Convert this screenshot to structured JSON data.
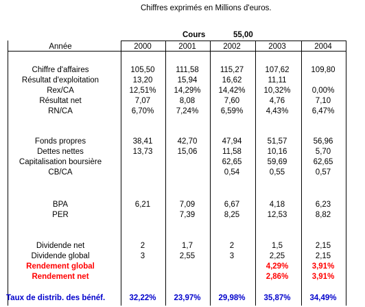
{
  "note": "Chiffres exprimés en Millions d'euros.",
  "cours_label": "Cours",
  "cours_value": "55,00",
  "header": {
    "label": "Année",
    "years": [
      "2000",
      "2001",
      "2002",
      "2003",
      "2004"
    ]
  },
  "sections": [
    {
      "rows": [
        {
          "label": "Chiffre d'affaires",
          "values": [
            "105,50",
            "111,58",
            "115,27",
            "107,62",
            "109,80"
          ]
        },
        {
          "label": "Résultat d'exploitation",
          "values": [
            "13,20",
            "15,94",
            "16,62",
            "11,11",
            ""
          ]
        },
        {
          "label": "Rex/CA",
          "values": [
            "12,51%",
            "14,29%",
            "14,42%",
            "10,32%",
            "0,00%"
          ]
        },
        {
          "label": "Résultat net",
          "values": [
            "7,07",
            "8,08",
            "7,60",
            "4,76",
            "7,10"
          ]
        },
        {
          "label": "RN/CA",
          "values": [
            "6,70%",
            "7,24%",
            "6,59%",
            "4,43%",
            "6,47%"
          ]
        }
      ]
    },
    {
      "rows": [
        {
          "label": "Fonds propres",
          "values": [
            "38,41",
            "42,70",
            "47,94",
            "51,57",
            "56,96"
          ]
        },
        {
          "label": "Dettes nettes",
          "values": [
            "13,73",
            "15,06",
            "11,58",
            "10,16",
            "5,70"
          ]
        },
        {
          "label": "Capitalisation boursière",
          "values": [
            "",
            "",
            "62,65",
            "59,69",
            "62,65"
          ]
        },
        {
          "label": "CB/CA",
          "values": [
            "",
            "",
            "0,54",
            "0,55",
            "0,57"
          ]
        }
      ]
    },
    {
      "rows": [
        {
          "label": "BPA",
          "values": [
            "6,21",
            "7,09",
            "6,67",
            "4,18",
            "6,23"
          ]
        },
        {
          "label": "PER",
          "values": [
            "",
            "7,39",
            "8,25",
            "12,53",
            "8,82"
          ]
        }
      ]
    },
    {
      "rows": [
        {
          "label": "Dividende net",
          "values": [
            "2",
            "1,7",
            "2",
            "1,5",
            "2,15"
          ]
        },
        {
          "label": "Dividende global",
          "values": [
            "3",
            "2,55",
            "3",
            "2,25",
            "2,15"
          ]
        },
        {
          "label": "Rendement global",
          "values": [
            "",
            "",
            "",
            "4,29%",
            "3,91%"
          ],
          "style": "red"
        },
        {
          "label": "Rendement net",
          "values": [
            "",
            "",
            "",
            "2,86%",
            "3,91%"
          ],
          "style": "red"
        }
      ]
    },
    {
      "rows": [
        {
          "label": "Taux de distrib. des bénéf.",
          "values": [
            "32,22%",
            "23,97%",
            "29,98%",
            "35,87%",
            "34,49%"
          ],
          "style": "blue"
        }
      ]
    }
  ]
}
